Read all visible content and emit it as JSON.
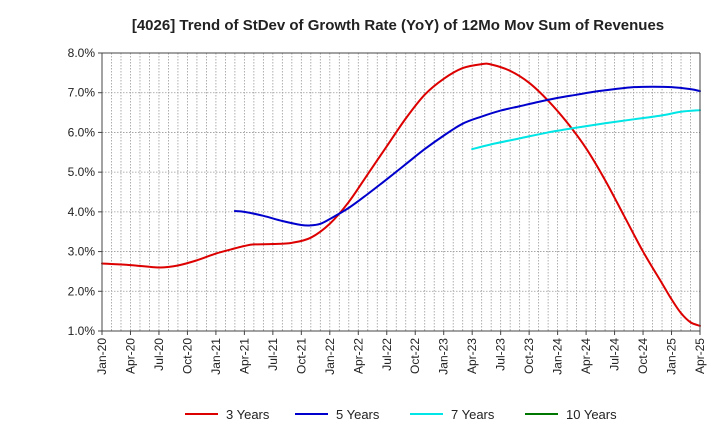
{
  "chart_data": {
    "type": "line",
    "title": "[4026]  Trend of StDev of Growth Rate (YoY) of 12Mo Mov Sum of Revenues",
    "xlabel": "",
    "ylabel": "",
    "ylim": [
      1.0,
      8.0
    ],
    "y_ticks": [
      "1.0%",
      "2.0%",
      "3.0%",
      "4.0%",
      "5.0%",
      "6.0%",
      "7.0%",
      "8.0%"
    ],
    "y_tick_values": [
      1,
      2,
      3,
      4,
      5,
      6,
      7,
      8
    ],
    "x_ticks": [
      "Jan-20",
      "Apr-20",
      "Jul-20",
      "Oct-20",
      "Jan-21",
      "Apr-21",
      "Jul-21",
      "Oct-21",
      "Jan-22",
      "Apr-22",
      "Jul-22",
      "Oct-22",
      "Jan-23",
      "Apr-23",
      "Jul-23",
      "Oct-23",
      "Jan-24",
      "Apr-24",
      "Jul-24",
      "Oct-24",
      "Jan-25",
      "Apr-25"
    ],
    "x_range_months": [
      0,
      63
    ],
    "series": [
      {
        "name": "3 Years",
        "color": "#dd0000",
        "points": [
          [
            0,
            2.7
          ],
          [
            3,
            2.66
          ],
          [
            6,
            2.6
          ],
          [
            8,
            2.65
          ],
          [
            10,
            2.78
          ],
          [
            12,
            2.95
          ],
          [
            14,
            3.08
          ],
          [
            15,
            3.14
          ],
          [
            16,
            3.18
          ],
          [
            18,
            3.19
          ],
          [
            20,
            3.22
          ],
          [
            22,
            3.35
          ],
          [
            24,
            3.7
          ],
          [
            26,
            4.25
          ],
          [
            28,
            4.95
          ],
          [
            30,
            5.65
          ],
          [
            32,
            6.35
          ],
          [
            34,
            6.95
          ],
          [
            36,
            7.35
          ],
          [
            38,
            7.62
          ],
          [
            40,
            7.72
          ],
          [
            41,
            7.71
          ],
          [
            43,
            7.55
          ],
          [
            45,
            7.25
          ],
          [
            47,
            6.8
          ],
          [
            49,
            6.25
          ],
          [
            51,
            5.6
          ],
          [
            53,
            4.8
          ],
          [
            55,
            3.9
          ],
          [
            57,
            3.0
          ],
          [
            59,
            2.2
          ],
          [
            60,
            1.8
          ],
          [
            61,
            1.45
          ],
          [
            62,
            1.22
          ],
          [
            63,
            1.13
          ]
        ]
      },
      {
        "name": "5 Years",
        "color": "#0000cc",
        "points": [
          [
            14,
            4.02
          ],
          [
            15,
            4.0
          ],
          [
            17,
            3.9
          ],
          [
            19,
            3.77
          ],
          [
            21,
            3.67
          ],
          [
            22,
            3.66
          ],
          [
            23,
            3.7
          ],
          [
            24,
            3.82
          ],
          [
            26,
            4.1
          ],
          [
            28,
            4.45
          ],
          [
            30,
            4.82
          ],
          [
            32,
            5.2
          ],
          [
            34,
            5.58
          ],
          [
            36,
            5.92
          ],
          [
            38,
            6.22
          ],
          [
            40,
            6.4
          ],
          [
            42,
            6.55
          ],
          [
            44,
            6.66
          ],
          [
            46,
            6.77
          ],
          [
            48,
            6.87
          ],
          [
            50,
            6.95
          ],
          [
            52,
            7.03
          ],
          [
            54,
            7.09
          ],
          [
            56,
            7.14
          ],
          [
            58,
            7.15
          ],
          [
            60,
            7.14
          ],
          [
            62,
            7.09
          ],
          [
            63,
            7.04
          ]
        ]
      },
      {
        "name": "7 Years",
        "color": "#00e5e5",
        "points": [
          [
            39,
            5.58
          ],
          [
            41,
            5.7
          ],
          [
            44,
            5.85
          ],
          [
            47,
            6.0
          ],
          [
            50,
            6.12
          ],
          [
            53,
            6.23
          ],
          [
            56,
            6.33
          ],
          [
            59,
            6.43
          ],
          [
            61,
            6.52
          ],
          [
            63,
            6.56
          ]
        ]
      },
      {
        "name": "10 Years",
        "color": "#007700",
        "points": []
      }
    ],
    "legend": {
      "position": "bottom",
      "items": [
        "3 Years",
        "5 Years",
        "7 Years",
        "10 Years"
      ]
    }
  }
}
